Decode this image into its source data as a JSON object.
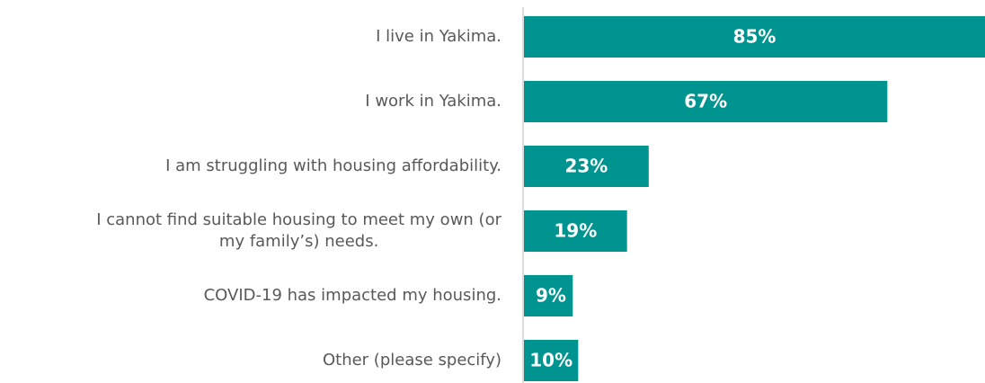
{
  "chart_data": {
    "type": "barh",
    "categories": [
      "I live in Yakima.",
      "I work in Yakima.",
      "I am struggling with housing affordability.",
      "I cannot find suitable housing to meet my own (or\nmy family’s) needs.",
      "COVID-19 has impacted my housing.",
      "Other (please specify)"
    ],
    "values": [
      85,
      67,
      23,
      19,
      9,
      10
    ],
    "value_labels": [
      "85%",
      "67%",
      "23%",
      "19%",
      "9%",
      "10%"
    ],
    "color": "#009490"
  }
}
